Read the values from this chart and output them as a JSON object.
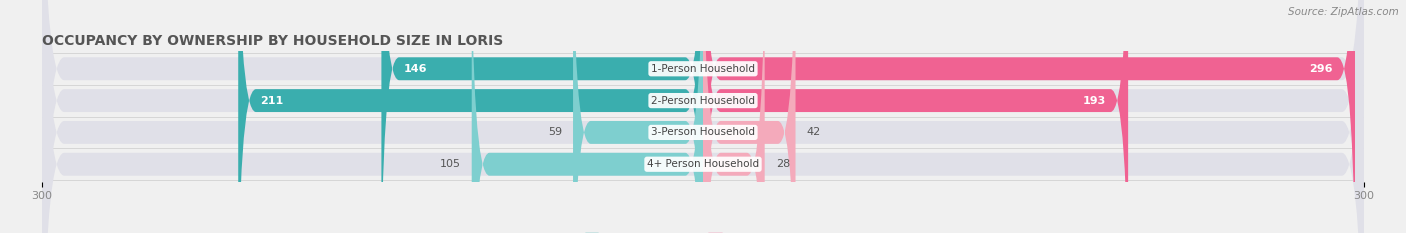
{
  "title": "OCCUPANCY BY OWNERSHIP BY HOUSEHOLD SIZE IN LORIS",
  "source": "Source: ZipAtlas.com",
  "categories": [
    "1-Person Household",
    "2-Person Household",
    "3-Person Household",
    "4+ Person Household"
  ],
  "owner_values": [
    146,
    211,
    59,
    105
  ],
  "renter_values": [
    296,
    193,
    42,
    28
  ],
  "owner_color_dark": "#3AAEAE",
  "owner_color_light": "#7ECFCF",
  "renter_color_dark": "#F06292",
  "renter_color_light": "#F4AABB",
  "axis_max": 300,
  "background_color": "#f0f0f0",
  "bar_background": "#e0e0e8",
  "title_fontsize": 10,
  "source_fontsize": 7.5,
  "bar_label_fontsize": 8,
  "category_fontsize": 7.5,
  "legend_fontsize": 8,
  "axis_label_fontsize": 8,
  "bar_height": 0.72,
  "bar_gap": 0.06
}
